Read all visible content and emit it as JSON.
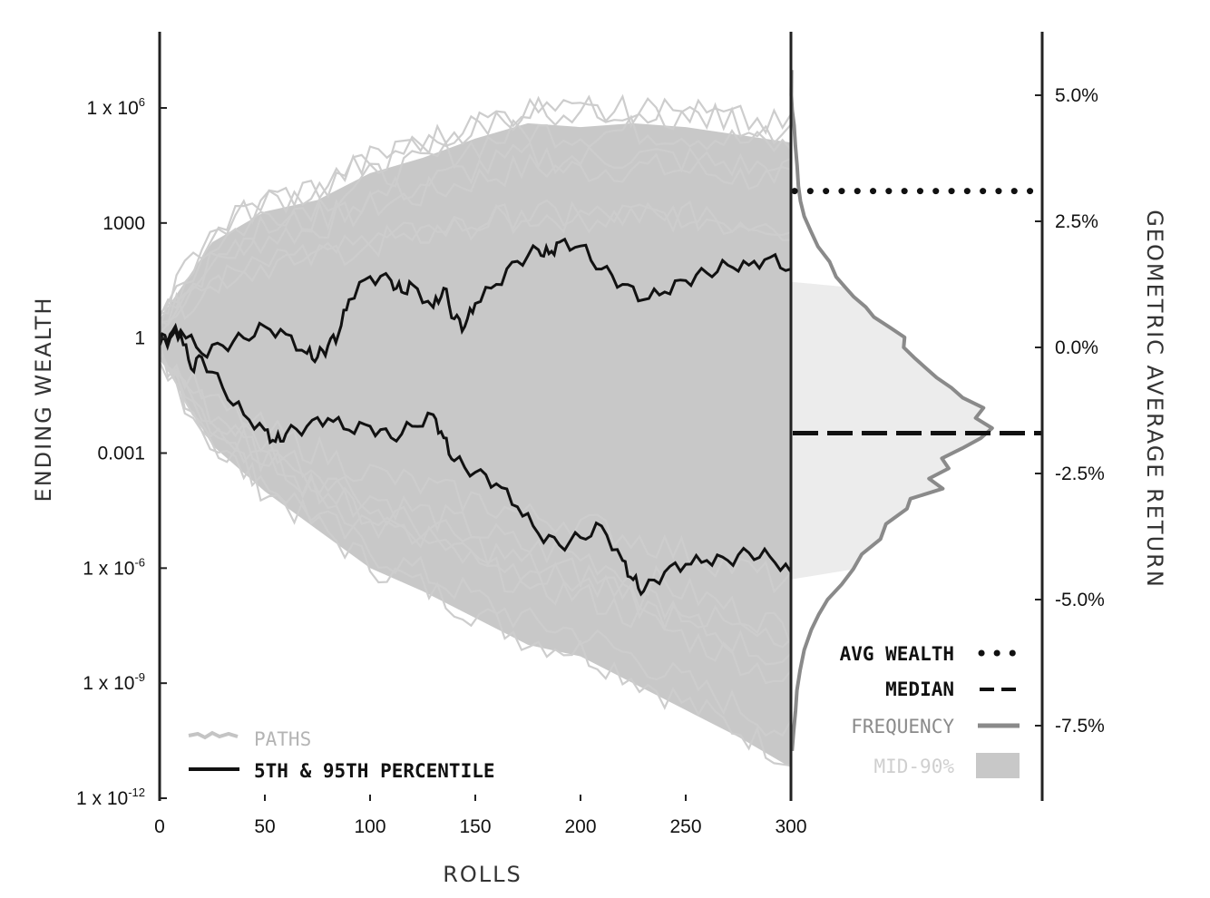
{
  "chart_data": {
    "type": "line",
    "xlabel": "ROLLS",
    "ylabel": "ENDING WEALTH",
    "y2label": "GEOMETRIC AVERAGE RETURN",
    "xlim": [
      0,
      300
    ],
    "x_ticks": [
      0,
      50,
      100,
      150,
      200,
      250,
      300
    ],
    "y_scale": "log10",
    "ylim_log10": [
      -12,
      6
    ],
    "y_ticks": [
      {
        "log10": 6,
        "base": "1 x 10",
        "exp": "6"
      },
      {
        "log10": 3,
        "base": "1000",
        "exp": ""
      },
      {
        "log10": 0,
        "base": "1",
        "exp": ""
      },
      {
        "log10": -3,
        "base": "0.001",
        "exp": ""
      },
      {
        "log10": -6,
        "base": "1 x 10",
        "exp": "-6"
      },
      {
        "log10": -9,
        "base": "1 x 10",
        "exp": "-9"
      },
      {
        "log10": -12,
        "base": "1 x 10",
        "exp": "-12"
      }
    ],
    "y2_ticks": [
      {
        "value": 5.0,
        "label": "5.0%"
      },
      {
        "value": 2.5,
        "label": "2.5%"
      },
      {
        "value": 0.0,
        "label": "0.0%"
      },
      {
        "value": -2.5,
        "label": "-2.5%"
      },
      {
        "value": -5.0,
        "label": "-5.0%"
      },
      {
        "value": -7.5,
        "label": "-7.5%"
      }
    ],
    "paths_band": {
      "x": [
        0,
        25,
        50,
        75,
        100,
        125,
        150,
        175,
        200,
        225,
        250,
        275,
        300
      ],
      "upper": [
        0.5,
        2.5,
        3.3,
        3.6,
        4.3,
        4.7,
        5.2,
        5.6,
        5.5,
        5.6,
        5.5,
        5.3,
        5.1
      ],
      "lower": [
        -0.5,
        -2.8,
        -4.0,
        -5.0,
        -6.0,
        -6.6,
        -7.3,
        -8.0,
        -8.3,
        -9.0,
        -9.7,
        -10.4,
        -11.2
      ]
    },
    "series": [
      {
        "name": "95th",
        "x": [
          0,
          5,
          10,
          20,
          30,
          40,
          50,
          60,
          70,
          75,
          80,
          85,
          90,
          100,
          110,
          115,
          120,
          130,
          135,
          140,
          145,
          150,
          160,
          170,
          180,
          185,
          190,
          200,
          210,
          220,
          230,
          240,
          250,
          260,
          270,
          280,
          290,
          300
        ],
        "log10": [
          -0.1,
          0.1,
          0.2,
          -0.4,
          -0.2,
          0.0,
          0.3,
          0.1,
          -0.4,
          -0.5,
          -0.2,
          0.1,
          1.0,
          1.6,
          1.5,
          1.2,
          1.4,
          0.8,
          1.3,
          0.5,
          0.3,
          0.9,
          1.4,
          2.0,
          2.3,
          2.2,
          2.5,
          2.4,
          1.8,
          1.4,
          1.0,
          1.2,
          1.5,
          1.7,
          1.9,
          1.9,
          2.1,
          1.8
        ]
      },
      {
        "name": "5th",
        "x": [
          0,
          5,
          10,
          15,
          20,
          30,
          40,
          50,
          55,
          60,
          70,
          80,
          90,
          100,
          110,
          120,
          130,
          135,
          140,
          150,
          160,
          170,
          180,
          190,
          200,
          210,
          220,
          225,
          230,
          240,
          250,
          260,
          270,
          280,
          290,
          300
        ],
        "log10": [
          -0.2,
          0.0,
          0.1,
          -0.8,
          -0.5,
          -1.3,
          -2.0,
          -2.4,
          -2.7,
          -2.5,
          -2.3,
          -2.1,
          -2.4,
          -2.3,
          -2.6,
          -2.3,
          -2.0,
          -2.6,
          -3.2,
          -3.5,
          -3.8,
          -4.4,
          -5.1,
          -5.4,
          -5.2,
          -4.9,
          -5.8,
          -6.3,
          -6.6,
          -6.1,
          -5.9,
          -5.8,
          -5.8,
          -5.6,
          -5.7,
          -6.1
        ]
      }
    ],
    "frequency": {
      "name": "FREQUENCY",
      "return_pct": [
        5.5,
        5.0,
        4.7,
        4.4,
        4.0,
        3.6,
        3.2,
        2.9,
        2.6,
        2.3,
        2.0,
        1.7,
        1.4,
        1.2,
        1.0,
        0.8,
        0.6,
        0.4,
        0.2,
        0.0,
        -0.2,
        -0.4,
        -0.6,
        -0.8,
        -1.0,
        -1.2,
        -1.4,
        -1.6,
        -1.8,
        -2.0,
        -2.2,
        -2.4,
        -2.6,
        -2.8,
        -3.0,
        -3.2,
        -3.5,
        -3.8,
        -4.1,
        -4.4,
        -4.7,
        -5.0,
        -5.3,
        -5.6,
        -6.0,
        -6.4,
        -6.8,
        -7.2,
        -7.6,
        -8.0
      ],
      "density": [
        0.5,
        0.3,
        1.1,
        2.7,
        3.8,
        5.2,
        6.3,
        8.1,
        11.2,
        16.9,
        22.9,
        32.8,
        38.3,
        45.8,
        53.4,
        63.5,
        70.4,
        83.7,
        96.4,
        95.6,
        104.4,
        113.9,
        123.6,
        136.1,
        145.8,
        163.3,
        156.6,
        170.6,
        160.9,
        145.2,
        128.0,
        133.8,
        117.1,
        128.8,
        101.3,
        98.4,
        80.6,
        75.9,
        60.1,
        52.8,
        43.0,
        31.1,
        23.5,
        17.2,
        11.2,
        7.8,
        5.1,
        3.9,
        2.3,
        0.9
      ],
      "mid90_return_pct": [
        -4.6,
        1.3
      ]
    },
    "avg_wealth_return_pct": 3.1,
    "median_return_pct": -1.7,
    "legend_left": [
      {
        "label": "PATHS",
        "color": "#bdbdbd"
      },
      {
        "label": "5TH & 95TH PERCENTILE",
        "color": "#111111"
      }
    ],
    "legend_right": [
      {
        "label": "AVG WEALTH",
        "style": "dotted",
        "color": "#111111"
      },
      {
        "label": "MEDIAN",
        "style": "dashed",
        "color": "#111111"
      },
      {
        "label": "FREQUENCY",
        "style": "solid",
        "color": "#8a8a8a"
      },
      {
        "label": "MID-90%",
        "style": "fill",
        "color": "#d4d4d4"
      }
    ],
    "colors": {
      "paths": "#c8c8c8",
      "percentile": "#111111",
      "frequency": "#8a8a8a",
      "mid90": "#ececec",
      "axis": "#222222"
    }
  }
}
